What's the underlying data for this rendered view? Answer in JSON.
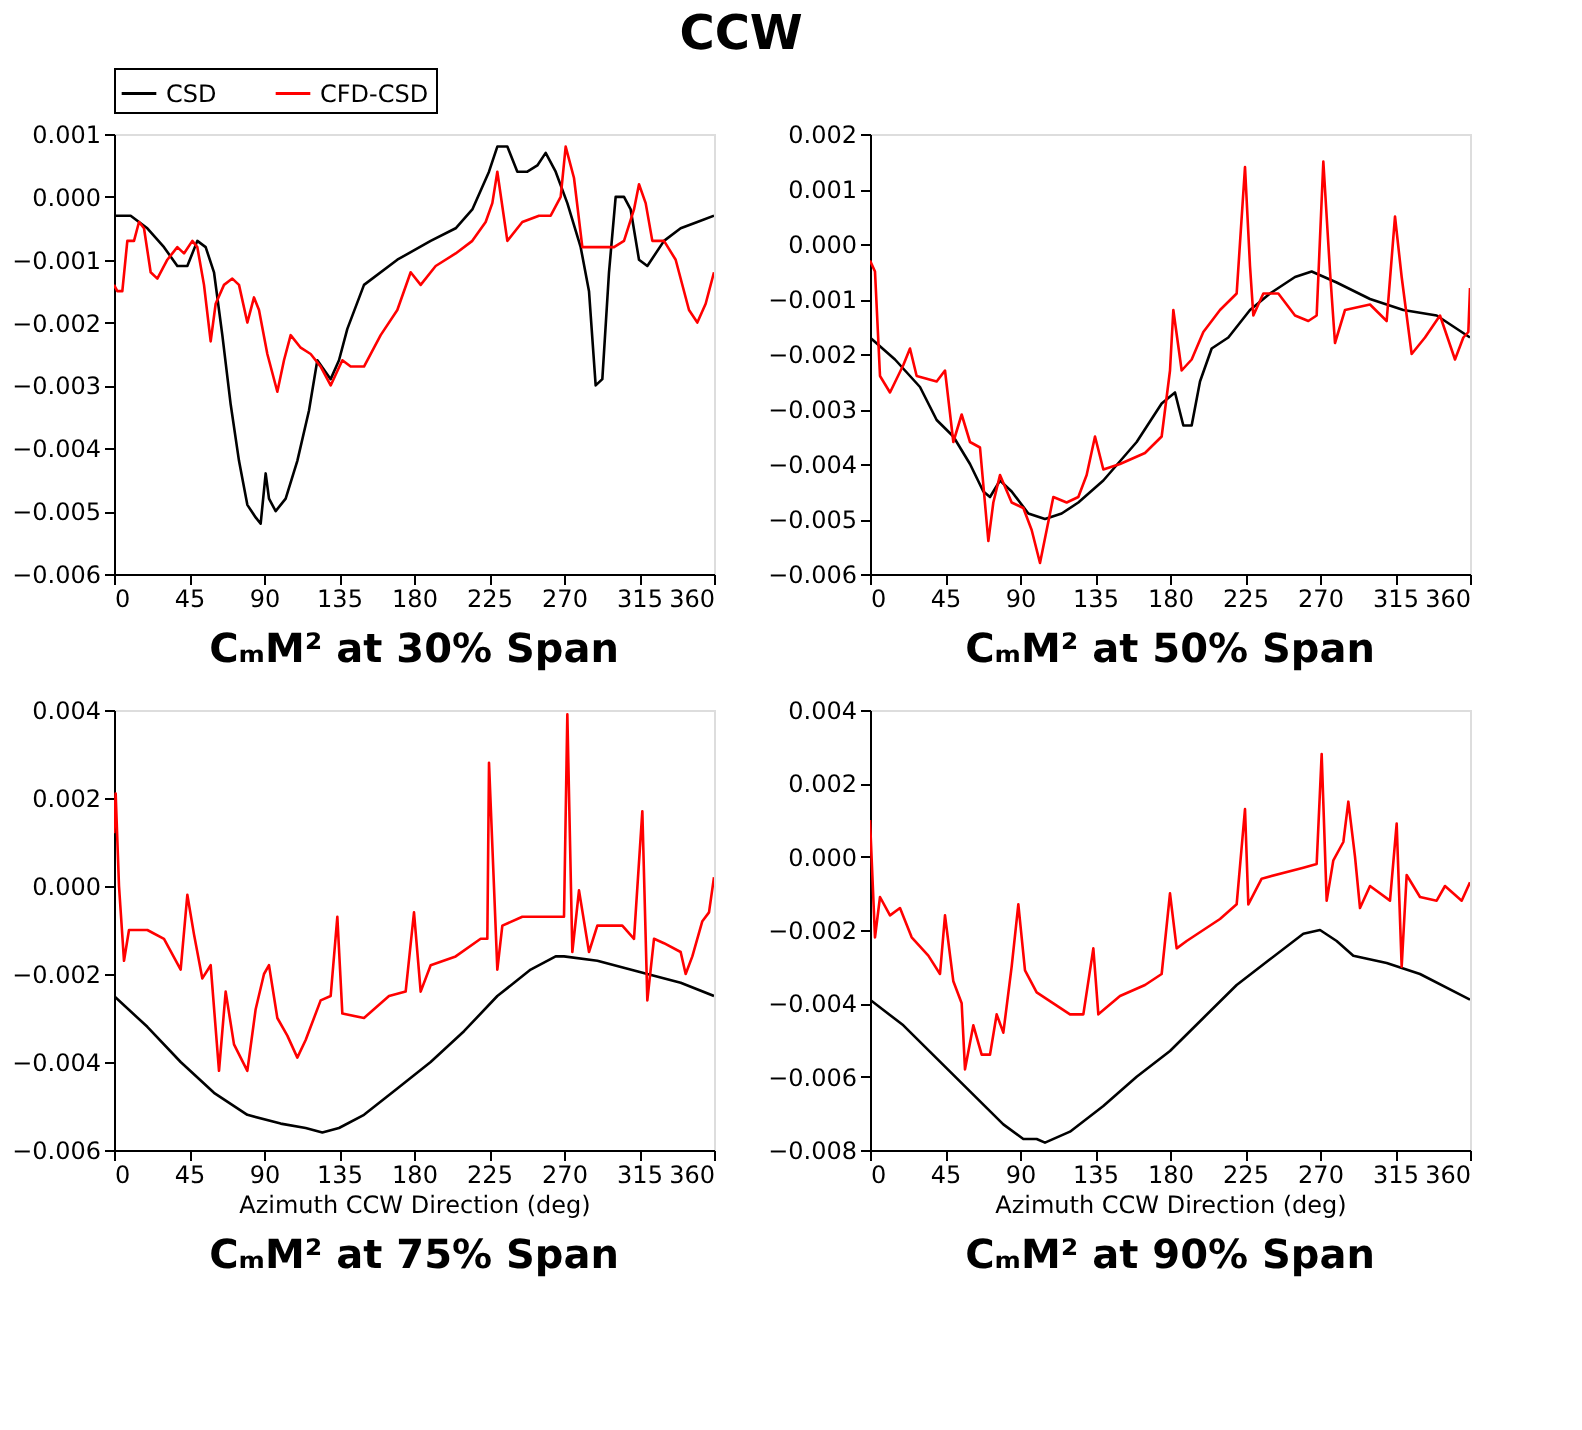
{
  "chart_data": [
    {
      "type": "other",
      "title": "CCW"
    },
    {
      "type": "line",
      "title": "CₘM² at 30% Span",
      "legend": "top",
      "line_style": "solid",
      "xlim": [
        0,
        360
      ],
      "xticks": [
        0,
        45,
        90,
        135,
        180,
        225,
        270,
        315,
        360
      ],
      "ylim": [
        -0.006,
        0.001
      ],
      "yticks": [
        {
          "value": 0.001,
          "label": "0.001"
        },
        {
          "value": 0,
          "label": "0.000"
        },
        {
          "value": -0.001,
          "label": "−0.001"
        },
        {
          "value": -0.002,
          "label": "−0.002"
        },
        {
          "value": -0.003,
          "label": "−0.003"
        },
        {
          "value": -0.004,
          "label": "−0.004"
        },
        {
          "value": -0.005,
          "label": "−0.005"
        },
        {
          "value": -0.006,
          "label": "−0.006"
        }
      ],
      "series": [
        {
          "name": "CSD",
          "color": "#000000",
          "x": [
            0,
            10,
            20,
            30,
            38,
            44,
            50,
            55,
            60,
            65,
            70,
            75,
            80,
            85,
            88,
            91,
            93,
            97,
            103,
            110,
            117,
            122,
            130,
            135,
            140,
            150,
            170,
            190,
            205,
            215,
            225,
            230,
            236,
            242,
            248,
            254,
            259,
            265,
            272,
            280,
            285,
            289,
            293,
            297,
            301,
            306,
            310,
            315,
            320,
            330,
            340,
            350,
            360
          ],
          "values": [
            -0.0003,
            -0.0003,
            -0.0005,
            -0.0008,
            -0.0011,
            -0.0011,
            -0.0007,
            -0.0008,
            -0.0012,
            -0.0022,
            -0.0033,
            -0.0042,
            -0.0049,
            -0.0051,
            -0.0052,
            -0.0044,
            -0.0048,
            -0.005,
            -0.0048,
            -0.0042,
            -0.0034,
            -0.0026,
            -0.0029,
            -0.0026,
            -0.0021,
            -0.0014,
            -0.001,
            -0.0007,
            -0.0005,
            -0.0002,
            0.0004,
            0.0008,
            0.0008,
            0.0004,
            0.0004,
            0.0005,
            0.0007,
            0.0004,
            -0.0001,
            -0.0008,
            -0.0015,
            -0.003,
            -0.0029,
            -0.0012,
            0.0,
            0.0,
            -0.0002,
            -0.001,
            -0.0011,
            -0.0007,
            -0.0005,
            -0.0004,
            -0.0003
          ]
        },
        {
          "name": "CFD-CSD",
          "color": "#ff0000",
          "x": [
            0,
            2,
            5,
            8,
            12,
            15,
            18,
            22,
            26,
            32,
            38,
            42,
            47,
            50,
            54,
            58,
            61,
            66,
            71,
            75,
            80,
            84,
            87,
            92,
            98,
            102,
            106,
            112,
            118,
            124,
            130,
            137,
            142,
            150,
            160,
            170,
            178,
            184,
            193,
            205,
            215,
            223,
            227,
            230,
            236,
            245,
            255,
            262,
            268,
            271,
            276,
            281,
            290,
            300,
            306,
            312,
            315,
            319,
            323,
            330,
            337,
            345,
            350,
            355,
            360
          ],
          "values": [
            -0.0014,
            -0.0015,
            -0.0015,
            -0.0007,
            -0.0007,
            -0.0004,
            -0.0005,
            -0.0012,
            -0.0013,
            -0.001,
            -0.0008,
            -0.0009,
            -0.0007,
            -0.0008,
            -0.0014,
            -0.0023,
            -0.0017,
            -0.0014,
            -0.0013,
            -0.0014,
            -0.002,
            -0.0016,
            -0.0018,
            -0.0025,
            -0.0031,
            -0.0026,
            -0.0022,
            -0.0024,
            -0.0025,
            -0.0027,
            -0.003,
            -0.0026,
            -0.0027,
            -0.0027,
            -0.0022,
            -0.0018,
            -0.0012,
            -0.0014,
            -0.0011,
            -0.0009,
            -0.0007,
            -0.0004,
            -0.0001,
            0.0004,
            -0.0007,
            -0.0004,
            -0.0003,
            -0.0003,
            0.0,
            0.0008,
            0.0003,
            -0.0008,
            -0.0008,
            -0.0008,
            -0.0007,
            -0.0002,
            0.0002,
            -0.0001,
            -0.0007,
            -0.0007,
            -0.001,
            -0.0018,
            -0.002,
            -0.0017,
            -0.0012
          ]
        }
      ]
    },
    {
      "type": "line",
      "title": "CₘM² at 50% Span",
      "legend": "top",
      "line_style": "solid",
      "xlim": [
        0,
        360
      ],
      "xticks": [
        0,
        45,
        90,
        135,
        180,
        225,
        270,
        315,
        360
      ],
      "ylim": [
        -0.006,
        0.002
      ],
      "yticks": [
        {
          "value": 0.002,
          "label": "0.002"
        },
        {
          "value": 0.001,
          "label": "0.001"
        },
        {
          "value": 0,
          "label": "0.000"
        },
        {
          "value": -0.001,
          "label": "−0.001"
        },
        {
          "value": -0.002,
          "label": "−0.002"
        },
        {
          "value": -0.003,
          "label": "−0.003"
        },
        {
          "value": -0.004,
          "label": "−0.004"
        },
        {
          "value": -0.005,
          "label": "−0.005"
        },
        {
          "value": -0.006,
          "label": "−0.006"
        }
      ],
      "series": [
        {
          "name": "CSD",
          "color": "#000000",
          "x": [
            0,
            15,
            30,
            40,
            50,
            60,
            68,
            72,
            78,
            85,
            95,
            105,
            115,
            125,
            140,
            160,
            175,
            183,
            188,
            193,
            198,
            205,
            215,
            228,
            240,
            255,
            265,
            280,
            300,
            320,
            340,
            360
          ],
          "values": [
            -0.0017,
            -0.0021,
            -0.0026,
            -0.0032,
            -0.0035,
            -0.004,
            -0.0045,
            -0.0046,
            -0.0043,
            -0.0045,
            -0.0049,
            -0.005,
            -0.0049,
            -0.0047,
            -0.0043,
            -0.0036,
            -0.0029,
            -0.0027,
            -0.0033,
            -0.0033,
            -0.0025,
            -0.0019,
            -0.0017,
            -0.0012,
            -0.0009,
            -0.0006,
            -0.0005,
            -0.0007,
            -0.001,
            -0.0012,
            -0.0013,
            -0.0017
          ]
        },
        {
          "name": "CFD-CSD",
          "color": "#ff0000",
          "x": [
            0,
            3,
            6,
            12,
            20,
            24,
            28,
            40,
            45,
            50,
            55,
            60,
            66,
            71,
            74,
            78,
            85,
            92,
            97,
            102,
            106,
            110,
            118,
            125,
            130,
            135,
            140,
            150,
            165,
            175,
            180,
            182,
            187,
            193,
            200,
            210,
            220,
            225,
            228,
            230,
            236,
            245,
            255,
            263,
            268,
            272,
            276,
            279,
            285,
            300,
            310,
            315,
            319,
            325,
            333,
            342,
            351,
            356,
            359,
            360
          ],
          "values": [
            -0.0003,
            -0.0005,
            -0.0024,
            -0.0027,
            -0.0022,
            -0.0019,
            -0.0024,
            -0.0025,
            -0.0023,
            -0.0036,
            -0.0031,
            -0.0036,
            -0.0037,
            -0.0054,
            -0.0047,
            -0.0042,
            -0.0047,
            -0.0048,
            -0.0052,
            -0.0058,
            -0.0052,
            -0.0046,
            -0.0047,
            -0.0046,
            -0.0042,
            -0.0035,
            -0.0041,
            -0.004,
            -0.0038,
            -0.0035,
            -0.0023,
            -0.0012,
            -0.0023,
            -0.0021,
            -0.0016,
            -0.0012,
            -0.0009,
            0.0014,
            -0.0004,
            -0.0013,
            -0.0009,
            -0.0009,
            -0.0013,
            -0.0014,
            -0.0013,
            0.0015,
            -0.0005,
            -0.0018,
            -0.0012,
            -0.0011,
            -0.0014,
            0.0005,
            -0.0006,
            -0.002,
            -0.0017,
            -0.0013,
            -0.0021,
            -0.0017,
            -0.0016,
            -0.0008
          ]
        }
      ]
    },
    {
      "type": "line",
      "title": "CₘM² at 75% Span",
      "xlabel": "Azimuth CCW Direction (deg)",
      "legend": "top",
      "line_style": "solid",
      "xlim": [
        0,
        360
      ],
      "xticks": [
        0,
        45,
        90,
        135,
        180,
        225,
        270,
        315,
        360
      ],
      "ylim": [
        -0.006,
        0.004
      ],
      "yticks": [
        {
          "value": 0.004,
          "label": "0.004"
        },
        {
          "value": 0.002,
          "label": "0.002"
        },
        {
          "value": 0,
          "label": "0.000"
        },
        {
          "value": -0.002,
          "label": "−0.002"
        },
        {
          "value": -0.004,
          "label": "−0.004"
        },
        {
          "value": -0.006,
          "label": "−0.006"
        }
      ],
      "series": [
        {
          "name": "CSD",
          "color": "#000000",
          "x": [
            0,
            20,
            40,
            60,
            80,
            100,
            115,
            125,
            135,
            150,
            170,
            190,
            210,
            230,
            250,
            265,
            270,
            290,
            320,
            340,
            360
          ],
          "values": [
            -0.0025,
            -0.0032,
            -0.004,
            -0.0047,
            -0.0052,
            -0.0054,
            -0.0055,
            -0.0056,
            -0.0055,
            -0.0052,
            -0.0046,
            -0.004,
            -0.0033,
            -0.0025,
            -0.0019,
            -0.0016,
            -0.0016,
            -0.0017,
            -0.002,
            -0.0022,
            -0.0025
          ]
        },
        {
          "name": "CFD-CSD",
          "color": "#ff0000",
          "x": [
            0,
            1,
            3,
            6,
            9,
            20,
            30,
            40,
            44,
            48,
            53,
            58,
            63,
            67,
            72,
            80,
            85,
            90,
            93,
            98,
            104,
            110,
            115,
            124,
            130,
            134,
            137,
            150,
            165,
            175,
            180,
            184,
            190,
            205,
            220,
            224,
            225,
            230,
            233,
            245,
            265,
            270,
            272,
            275,
            279,
            285,
            290,
            305,
            312,
            317,
            320,
            324,
            330,
            340,
            343,
            347,
            353,
            357,
            360
          ],
          "values": [
            0.0012,
            0.0021,
            0.0,
            -0.0017,
            -0.001,
            -0.001,
            -0.0012,
            -0.0019,
            -0.0002,
            -0.0011,
            -0.0021,
            -0.0018,
            -0.0042,
            -0.0024,
            -0.0036,
            -0.0042,
            -0.0028,
            -0.002,
            -0.0018,
            -0.003,
            -0.0034,
            -0.0039,
            -0.0035,
            -0.0026,
            -0.0025,
            -0.0007,
            -0.0029,
            -0.003,
            -0.0025,
            -0.0024,
            -0.0006,
            -0.0024,
            -0.0018,
            -0.0016,
            -0.0012,
            -0.0012,
            0.0028,
            -0.0019,
            -0.0009,
            -0.0007,
            -0.0007,
            -0.0007,
            0.0039,
            -0.0015,
            -0.0001,
            -0.0015,
            -0.0009,
            -0.0009,
            -0.0012,
            0.0017,
            -0.0026,
            -0.0012,
            -0.0013,
            -0.0015,
            -0.002,
            -0.0016,
            -0.0008,
            -0.0006,
            0.0002
          ]
        }
      ]
    },
    {
      "type": "line",
      "title": "CₘM² at 90% Span",
      "xlabel": "Azimuth CCW Direction (deg)",
      "legend": "top",
      "line_style": "solid",
      "xlim": [
        0,
        360
      ],
      "xticks": [
        0,
        45,
        90,
        135,
        180,
        225,
        270,
        315,
        360
      ],
      "ylim": [
        -0.008,
        0.004
      ],
      "yticks": [
        {
          "value": 0.004,
          "label": "0.004"
        },
        {
          "value": 0.002,
          "label": "0.002"
        },
        {
          "value": 0,
          "label": "0.000"
        },
        {
          "value": -0.002,
          "label": "−0.002"
        },
        {
          "value": -0.004,
          "label": "−0.004"
        },
        {
          "value": -0.006,
          "label": "−0.006"
        },
        {
          "value": -0.008,
          "label": "−0.008"
        }
      ],
      "series": [
        {
          "name": "CSD",
          "color": "#000000",
          "x": [
            0,
            20,
            40,
            60,
            80,
            92,
            100,
            105,
            120,
            140,
            160,
            180,
            200,
            220,
            240,
            260,
            270,
            280,
            290,
            310,
            330,
            360
          ],
          "values": [
            -0.0039,
            -0.0046,
            -0.0055,
            -0.0064,
            -0.0073,
            -0.0077,
            -0.0077,
            -0.0078,
            -0.0075,
            -0.0068,
            -0.006,
            -0.0053,
            -0.0044,
            -0.0035,
            -0.0028,
            -0.0021,
            -0.002,
            -0.0023,
            -0.0027,
            -0.0029,
            -0.0032,
            -0.0039
          ]
        },
        {
          "name": "CFD-CSD",
          "color": "#ff0000",
          "x": [
            0,
            3,
            6,
            12,
            18,
            25,
            35,
            42,
            45,
            50,
            55,
            57,
            62,
            67,
            72,
            76,
            80,
            85,
            89,
            93,
            100,
            110,
            120,
            128,
            134,
            137,
            150,
            165,
            175,
            180,
            184,
            190,
            210,
            220,
            225,
            227,
            235,
            260,
            268,
            271,
            274,
            278,
            284,
            287,
            291,
            294,
            300,
            312,
            316,
            319,
            322,
            330,
            340,
            345,
            355,
            360
          ],
          "values": [
            0.001,
            -0.0022,
            -0.0011,
            -0.0016,
            -0.0014,
            -0.0022,
            -0.0027,
            -0.0032,
            -0.0016,
            -0.0034,
            -0.004,
            -0.0058,
            -0.0046,
            -0.0054,
            -0.0054,
            -0.0043,
            -0.0048,
            -0.003,
            -0.0013,
            -0.0031,
            -0.0037,
            -0.004,
            -0.0043,
            -0.0043,
            -0.0025,
            -0.0043,
            -0.0038,
            -0.0035,
            -0.0032,
            -0.001,
            -0.0025,
            -0.0023,
            -0.0017,
            -0.0013,
            0.0013,
            -0.0013,
            -0.0006,
            -0.0003,
            -0.0002,
            0.0028,
            -0.0012,
            -0.0001,
            0.0004,
            0.0015,
            0.0,
            -0.0014,
            -0.0008,
            -0.0012,
            0.0009,
            -0.003,
            -0.0005,
            -0.0011,
            -0.0012,
            -0.0008,
            -0.0012,
            -0.0007
          ]
        }
      ]
    }
  ]
}
